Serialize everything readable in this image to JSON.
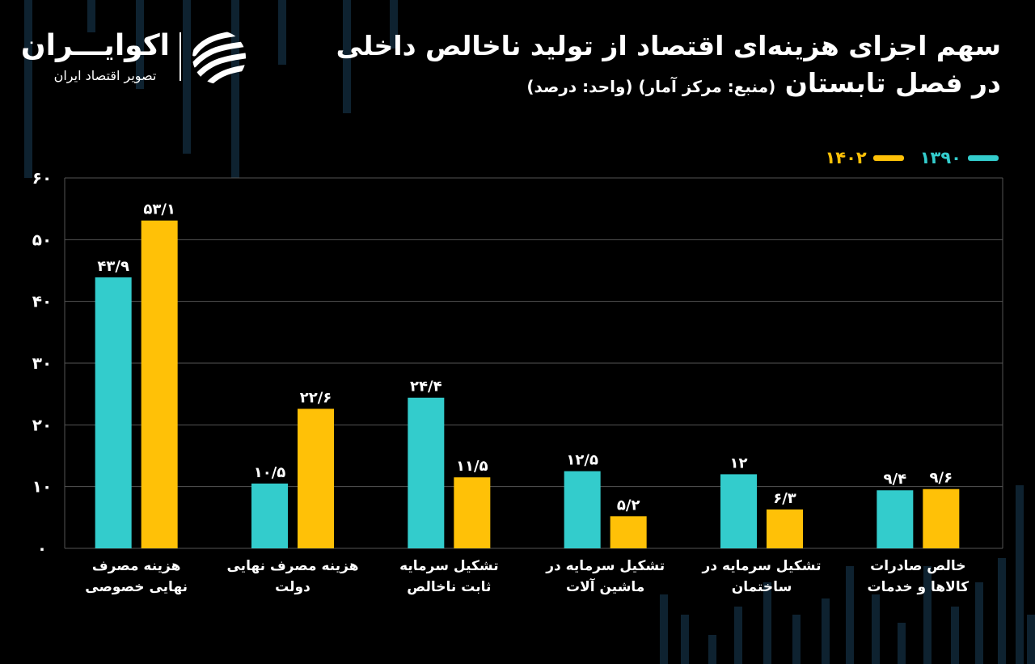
{
  "header": {
    "title_line1": "سهم اجزای هزینه‌ای اقتصاد از تولید ناخالص داخلی",
    "title_line2": "در فصل تابستان",
    "subtitle": "(منبع: مرکز آمار) (واحد: درصد)"
  },
  "logo": {
    "name": "اکوایـــران",
    "tagline": "تصویر اقتصاد ایران",
    "mark_icon": "ecoiran-stripes-icon"
  },
  "colors": {
    "series_1390": "#33CCCC",
    "series_1402": "#FFC107",
    "grid": "#555555",
    "text": "#FFFFFF",
    "decor": "#0E2230"
  },
  "chart_data": {
    "type": "bar",
    "categories": [
      [
        "هزینه مصرف",
        "نهایی خصوصی"
      ],
      [
        "هزینه مصرف نهایی",
        "دولت"
      ],
      [
        "تشکیل سرمایه",
        "ثابت ناخالص"
      ],
      [
        "تشکیل سرمایه در",
        "ماشین آلات"
      ],
      [
        "تشکیل سرمایه در",
        "ساختمان"
      ],
      [
        "خالص صادرات",
        "کالاها و خدمات"
      ]
    ],
    "series": [
      {
        "name": "۱۳۹۰",
        "color": "#33CCCC",
        "values": [
          43.9,
          10.5,
          24.4,
          12.5,
          12,
          9.4
        ],
        "labels": [
          "۴۳/۹",
          "۱۰/۵",
          "۲۴/۴",
          "۱۲/۵",
          "۱۲",
          "۹/۴"
        ]
      },
      {
        "name": "۱۴۰۲",
        "color": "#FFC107",
        "values": [
          53.1,
          22.6,
          11.5,
          5.2,
          6.3,
          9.6
        ],
        "labels": [
          "۵۳/۱",
          "۲۲/۶",
          "۱۱/۵",
          "۵/۲",
          "۶/۳",
          "۹/۶"
        ]
      }
    ],
    "ylim": [
      0,
      60
    ],
    "yticks": [
      0,
      10,
      20,
      30,
      40,
      50,
      60
    ],
    "ytick_labels": [
      "۰",
      "۱۰",
      "۲۰",
      "۳۰",
      "۴۰",
      "۵۰",
      "۶۰"
    ],
    "grid": true,
    "legend_position": "top-right"
  }
}
